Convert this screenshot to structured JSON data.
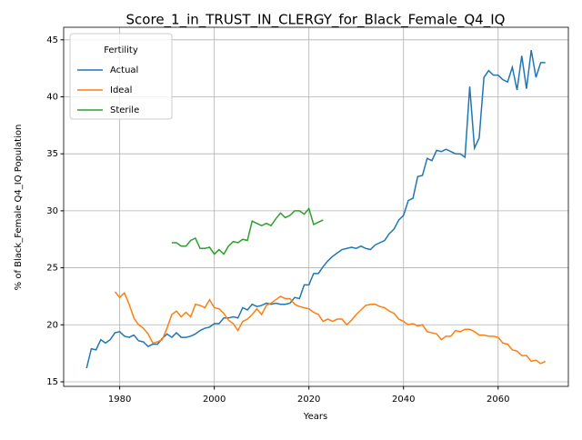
{
  "chart_data": {
    "type": "line",
    "title": "Score_1_in_TRUST_IN_CLERGY_for_Black_Female_Q4_IQ",
    "xlabel": "Years",
    "ylabel": "% of Black_Female Q4_IQ Population",
    "legend_title": "Fertility",
    "legend": "upper left",
    "grid": true,
    "xlim": [
      1968.15,
      2074.85
    ],
    "ylim": [
      14.6,
      46.1
    ],
    "xticks": [
      1980,
      2000,
      2020,
      2040,
      2060
    ],
    "yticks": [
      15,
      20,
      25,
      30,
      35,
      40,
      45
    ],
    "x": [
      1973,
      1974,
      1975,
      1976,
      1977,
      1978,
      1979,
      1980,
      1981,
      1982,
      1983,
      1984,
      1985,
      1986,
      1987,
      1988,
      1989,
      1990,
      1991,
      1992,
      1993,
      1994,
      1995,
      1996,
      1997,
      1998,
      1999,
      2000,
      2001,
      2002,
      2003,
      2004,
      2005,
      2006,
      2007,
      2008,
      2009,
      2010,
      2011,
      2012,
      2013,
      2014,
      2015,
      2016,
      2017,
      2018,
      2019,
      2020,
      2021,
      2022,
      2023,
      2024,
      2025,
      2026,
      2027,
      2028,
      2029,
      2030,
      2031,
      2032,
      2033,
      2034,
      2035,
      2036,
      2037,
      2038,
      2039,
      2040,
      2041,
      2042,
      2043,
      2044,
      2045,
      2046,
      2047,
      2048,
      2049,
      2050,
      2051,
      2052,
      2053,
      2054,
      2055,
      2056,
      2057,
      2058,
      2059,
      2060,
      2061,
      2062,
      2063,
      2064,
      2065,
      2066,
      2067,
      2068,
      2069,
      2070
    ],
    "series": [
      {
        "name": "Actual",
        "color": "#1f77b4",
        "values": [
          16.2,
          17.9,
          17.8,
          18.7,
          18.4,
          18.7,
          19.3,
          19.4,
          19.0,
          18.9,
          19.1,
          18.6,
          18.5,
          18.1,
          18.3,
          18.3,
          18.8,
          19.2,
          18.9,
          19.3,
          18.9,
          18.9,
          19.0,
          19.2,
          19.5,
          19.7,
          19.8,
          20.1,
          20.1,
          20.6,
          20.6,
          20.7,
          20.6,
          21.5,
          21.3,
          21.8,
          21.6,
          21.7,
          21.9,
          21.8,
          21.9,
          21.8,
          21.8,
          21.9,
          22.4,
          22.3,
          23.5,
          23.5,
          24.5,
          24.5,
          25.1,
          25.6,
          26.0,
          26.3,
          26.6,
          26.7,
          26.8,
          26.7,
          26.9,
          26.7,
          26.6,
          27.0,
          27.2,
          27.4,
          28.0,
          28.4,
          29.2,
          29.6,
          30.9,
          31.1,
          33.0,
          33.1,
          34.6,
          34.4,
          35.3,
          35.2,
          35.4,
          35.2,
          35.0,
          35.0,
          34.7,
          40.9,
          35.5,
          36.4,
          41.7,
          42.3,
          41.9,
          41.9,
          41.5,
          41.3,
          42.6,
          40.6,
          43.6,
          40.7,
          44.1,
          41.7,
          43.0,
          43.0
        ]
      },
      {
        "name": "Ideal",
        "color": "#ff7f0e",
        "values": [
          null,
          null,
          null,
          null,
          null,
          null,
          22.9,
          22.4,
          22.8,
          21.8,
          20.6,
          20.0,
          19.7,
          19.2,
          18.4,
          18.5,
          18.7,
          19.7,
          20.9,
          21.2,
          20.7,
          21.1,
          20.7,
          21.8,
          21.7,
          21.5,
          22.2,
          21.5,
          21.4,
          21.0,
          20.4,
          20.1,
          19.5,
          20.3,
          20.5,
          20.9,
          21.4,
          20.9,
          21.7,
          21.9,
          22.2,
          22.5,
          22.3,
          22.3,
          21.8,
          21.6,
          21.5,
          21.4,
          21.1,
          20.9,
          20.3,
          20.5,
          20.3,
          20.5,
          20.5,
          20.0,
          20.4,
          20.9,
          21.3,
          21.7,
          21.8,
          21.8,
          21.6,
          21.5,
          21.2,
          21.0,
          20.5,
          20.3,
          20.0,
          20.1,
          19.9,
          20.0,
          19.4,
          19.3,
          19.2,
          18.7,
          19.0,
          19.0,
          19.5,
          19.4,
          19.6,
          19.6,
          19.4,
          19.1,
          19.1,
          19.0,
          19.0,
          18.9,
          18.4,
          18.3,
          17.8,
          17.7,
          17.3,
          17.3,
          16.8,
          16.9,
          16.6,
          16.8
        ]
      },
      {
        "name": "Sterile",
        "color": "#2ca02c",
        "values": [
          null,
          null,
          null,
          null,
          null,
          null,
          null,
          null,
          null,
          null,
          null,
          null,
          null,
          null,
          null,
          null,
          null,
          null,
          27.2,
          27.2,
          26.9,
          26.9,
          27.4,
          27.6,
          26.7,
          26.7,
          26.8,
          26.2,
          26.6,
          26.2,
          26.9,
          27.3,
          27.2,
          27.5,
          27.4,
          29.1,
          28.9,
          28.7,
          28.9,
          28.7,
          29.3,
          29.8,
          29.4,
          29.6,
          30.0,
          30.0,
          29.7,
          30.2,
          28.8,
          29.0,
          29.2,
          null,
          null,
          null,
          null,
          null,
          null,
          null,
          null,
          null,
          null,
          null,
          null,
          null,
          null,
          null,
          null,
          null,
          null,
          null,
          null,
          null,
          null,
          null,
          null,
          null,
          null,
          null,
          null,
          null,
          null,
          null,
          null,
          null,
          null,
          null,
          null,
          null,
          null,
          null,
          null,
          null,
          null,
          null,
          null,
          null,
          null,
          null
        ]
      }
    ]
  }
}
